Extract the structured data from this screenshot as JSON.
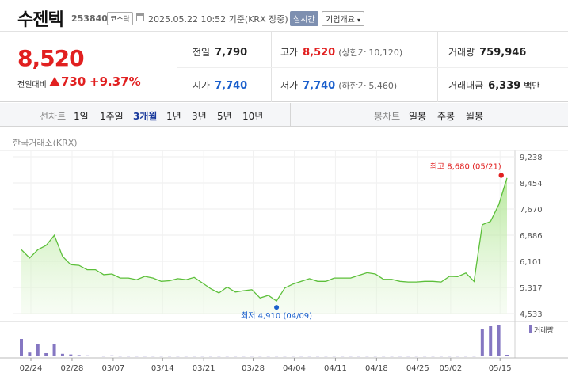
{
  "header": {
    "name": "수젠텍",
    "code": "253840",
    "market_badge": "코스닥",
    "datetime": "2025.05.22 10:52 기준(KRX 장중)",
    "realtime_badge": "실시간",
    "company_menu": "기업개요"
  },
  "summary": {
    "price": "8,520",
    "change_label": "전일대비",
    "change_value": "730",
    "change_pct": "+9.37%",
    "prev_close_label": "전일",
    "prev_close": "7,790",
    "high_label": "고가",
    "high": "8,520",
    "upper_limit": "(상한가 10,120)",
    "volume_label": "거래량",
    "volume": "759,946",
    "open_label": "시가",
    "open": "7,740",
    "low_label": "저가",
    "low": "7,740",
    "lower_limit": "(하한가 5,460)",
    "amount_label": "거래대금",
    "amount": "6,339",
    "amount_unit": "백만"
  },
  "tabs": {
    "line_label": "선차트",
    "line": [
      "1일",
      "1주일",
      "3개월",
      "1년",
      "3년",
      "5년",
      "10년"
    ],
    "line_active": 2,
    "candle_label": "봉차트",
    "candle": [
      "일봉",
      "주봉",
      "월봉"
    ]
  },
  "exchange_label": "한국거래소(KRX)",
  "colors": {
    "up": "#e12020",
    "down": "#1a5fcc",
    "line": "#5cbf3a",
    "volume": "#8577c2"
  },
  "chart_data": {
    "type": "area",
    "x_ticks": [
      "02/24",
      "02/28",
      "03/07",
      "03/14",
      "03/21",
      "03/28",
      "04/04",
      "04/11",
      "04/18",
      "04/25",
      "05/02",
      "05/15"
    ],
    "y_ticks": [
      "9,238",
      "8,454",
      "7,670",
      "6,886",
      "6,101",
      "5,317",
      "4,533"
    ],
    "ylim": [
      4533,
      9238
    ],
    "values": [
      6450,
      6200,
      6450,
      6580,
      6880,
      6250,
      6000,
      5980,
      5850,
      5850,
      5700,
      5720,
      5600,
      5600,
      5550,
      5650,
      5600,
      5500,
      5520,
      5580,
      5550,
      5620,
      5450,
      5280,
      5150,
      5330,
      5180,
      5220,
      5250,
      5000,
      5080,
      4910,
      5300,
      5420,
      5500,
      5580,
      5500,
      5500,
      5600,
      5600,
      5600,
      5680,
      5760,
      5720,
      5560,
      5560,
      5500,
      5480,
      5480,
      5500,
      5500,
      5480,
      5650,
      5640,
      5750,
      5500,
      7200,
      7300,
      7800,
      8600
    ],
    "volumes": [
      0.55,
      0.12,
      0.38,
      0.1,
      0.38,
      0.08,
      0.06,
      0.04,
      0.03,
      0.02,
      0.01,
      0.03,
      0.01,
      0.01,
      0.01,
      0.01,
      0.01,
      0.01,
      0.01,
      0.01,
      0.01,
      0.01,
      0.01,
      0.01,
      0.01,
      0.01,
      0.01,
      0.01,
      0.01,
      0.01,
      0.01,
      0.01,
      0.01,
      0.01,
      0.01,
      0.01,
      0.01,
      0.01,
      0.01,
      0.01,
      0.01,
      0.01,
      0.01,
      0.01,
      0.01,
      0.01,
      0.01,
      0.01,
      0.01,
      0.01,
      0.01,
      0.01,
      0.01,
      0.01,
      0.01,
      0.01,
      0.85,
      0.95,
      1.0,
      0.05
    ],
    "max_label": "최고 8,680 (05/21)",
    "min_label": "최저 4,910 (04/09)",
    "volume_legend": "거래량"
  }
}
